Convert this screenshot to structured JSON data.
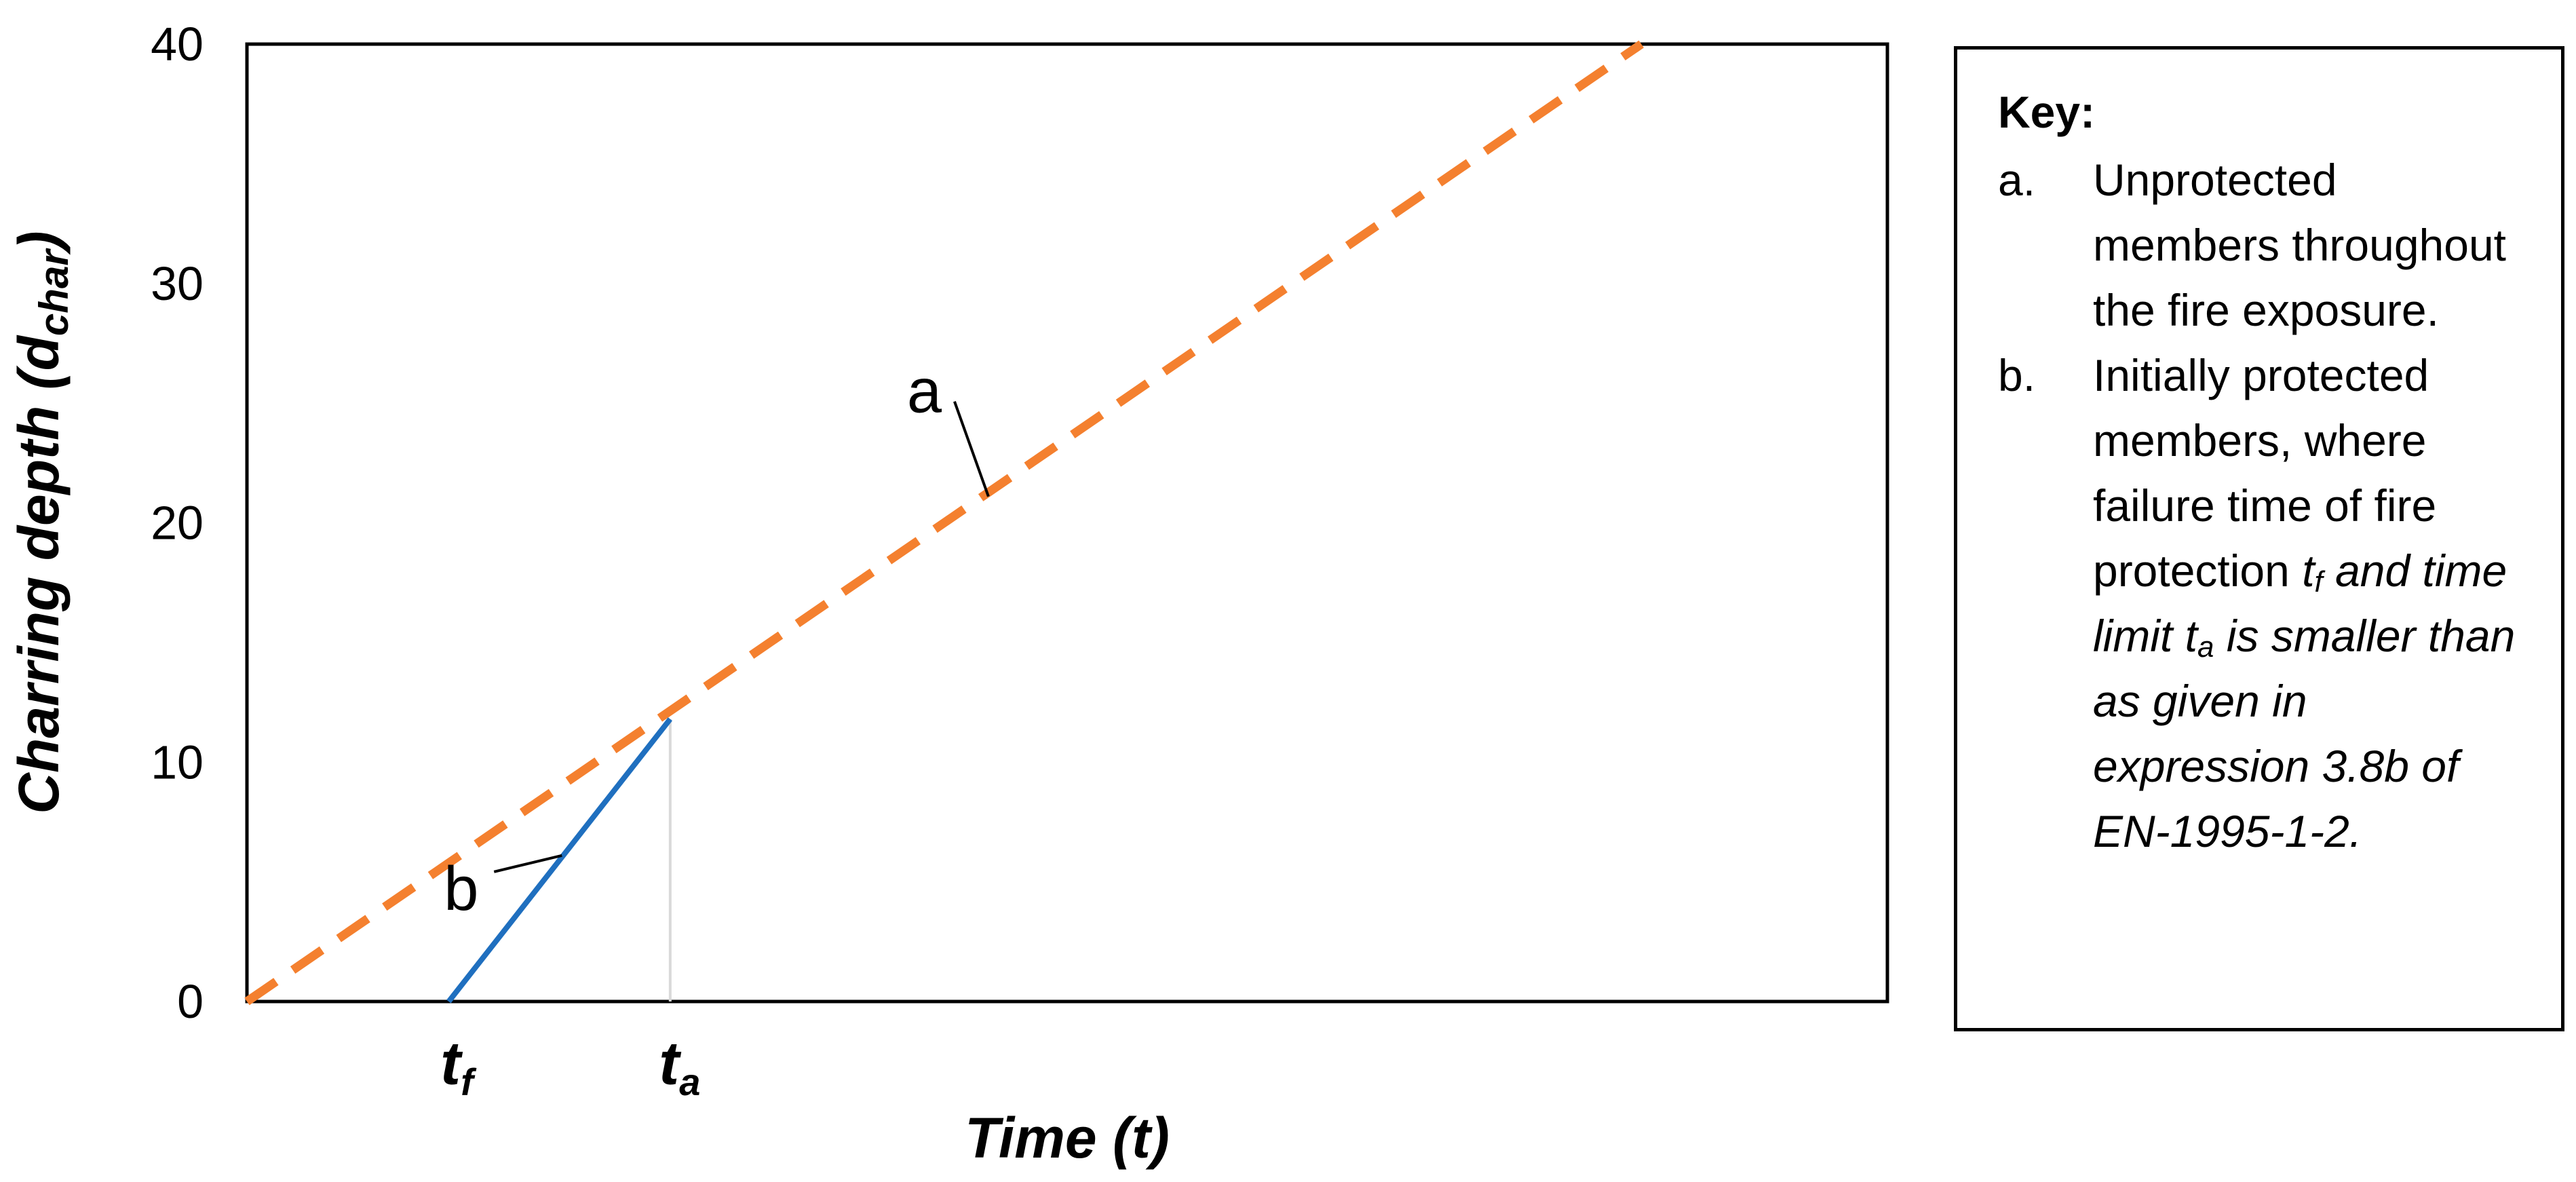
{
  "chart_data": {
    "type": "line",
    "xlabel": "Time (t)",
    "ylabel_main": "Charring depth (d",
    "ylabel_sub": "char",
    "ylabel_close": ")",
    "ylim": [
      0,
      40
    ],
    "yticks": [
      "0",
      "10",
      "20",
      "30",
      "40"
    ],
    "xlim": [
      0,
      100
    ],
    "grid": false,
    "legend": "right",
    "series": [
      {
        "key": "a",
        "color": "#F4802F",
        "style": "dashed",
        "x": [
          0,
          85
        ],
        "y": [
          0,
          40
        ]
      },
      {
        "key": "b",
        "color": "#1F6FBF",
        "style": "solid",
        "x": [
          12.3,
          25.8
        ],
        "y": [
          0,
          11.8
        ]
      }
    ],
    "marks": [
      {
        "label_main": "t",
        "label_sub": "f",
        "x": 12.3
      },
      {
        "label_main": "t",
        "label_sub": "a",
        "x": 25.8
      }
    ],
    "ta_vline": {
      "x": 25.8,
      "y_top": 11.8,
      "color": "#D9D9D9"
    },
    "annotations": [
      {
        "text": "a",
        "x": 45.2,
        "y": 21.1
      },
      {
        "text": "b",
        "x": 19.2,
        "y": 6.1
      }
    ]
  },
  "key": {
    "title": "Key:",
    "item_a_letter": "a.",
    "item_a_text": "Unprotected members throughout the fire exposure.",
    "item_b_letter": "b.",
    "item_b_text1": "Initially protected members, where failure time of fire protection ",
    "item_b_tf_main": "t",
    "item_b_tf_sub": "f",
    "item_b_text2": " and time limit ",
    "item_b_ta_main": "t",
    "item_b_ta_sub": "a",
    "item_b_text3": " is smaller than as given in expression 3.8b of EN-1995-1-2."
  }
}
